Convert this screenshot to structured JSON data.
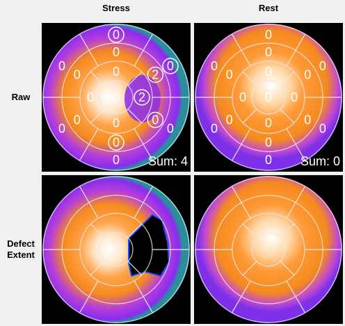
{
  "columns": [
    "Stress",
    "Rest"
  ],
  "rows": [
    "Raw",
    "Defect Extent"
  ],
  "panels": [
    {
      "scores": [
        {
          "text": "0",
          "circled": true
        },
        {
          "text": "0",
          "circled": true
        },
        {
          "text": "0",
          "circled": false
        },
        {
          "text": "0",
          "circled": false
        },
        {
          "text": "0",
          "circled": false
        },
        {
          "text": "0",
          "circled": false
        },
        {
          "text": "0",
          "circled": false
        },
        {
          "text": "2",
          "circled": true
        },
        {
          "text": "0",
          "circled": true
        },
        {
          "text": "0",
          "circled": true
        },
        {
          "text": "0",
          "circled": false
        },
        {
          "text": "0",
          "circled": false
        },
        {
          "text": "0",
          "circled": false
        },
        {
          "text": "2",
          "circled": true
        },
        {
          "text": "0",
          "circled": false
        },
        {
          "text": "0",
          "circled": false
        },
        {
          "text": "0",
          "circled": false
        }
      ],
      "sum": "Sum: 4"
    },
    {
      "scores": [
        {
          "text": "0",
          "circled": false
        },
        {
          "text": "0",
          "circled": false
        },
        {
          "text": "0",
          "circled": false
        },
        {
          "text": "0",
          "circled": false
        },
        {
          "text": "0",
          "circled": false
        },
        {
          "text": "0",
          "circled": false
        },
        {
          "text": "0",
          "circled": false
        },
        {
          "text": "0",
          "circled": false
        },
        {
          "text": "0",
          "circled": false
        },
        {
          "text": "0",
          "circled": false
        },
        {
          "text": "0",
          "circled": false
        },
        {
          "text": "0",
          "circled": false
        },
        {
          "text": "0",
          "circled": false
        },
        {
          "text": "0",
          "circled": false
        },
        {
          "text": "0",
          "circled": false
        },
        {
          "text": "0",
          "circled": false
        },
        {
          "text": "0",
          "circled": false
        }
      ],
      "sum": "Sum: 0"
    }
  ]
}
